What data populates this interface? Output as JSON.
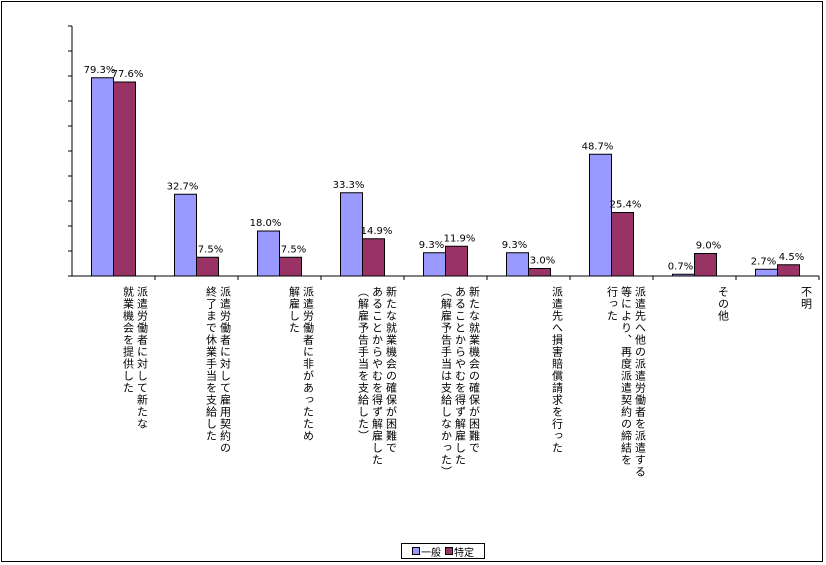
{
  "chart_data": {
    "type": "bar",
    "categories": [
      [
        "派遣労働者に対して新たな",
        "就業機会を提供した"
      ],
      [
        "派遣労働者に対して雇用契約の",
        "終了まで休業手当を支給した"
      ],
      [
        "派遣労働者に非があったため",
        "解雇した"
      ],
      [
        "新たな就業機会の確保が困難で",
        "あることからやむを得ず解雇した",
        "（解雇予告手当を支給した）"
      ],
      [
        "新たな就業機会の確保が困難で",
        "あることからやむを得ず解雇した",
        "（解雇予告手当は支給しなかった）"
      ],
      [
        "派遣先へ損害賠償請求を行った"
      ],
      [
        "派遣先へ他の派遣労働者を派遣する",
        "等により、再度派遣契約の締結を",
        "行った"
      ],
      [
        "その他"
      ],
      [
        "不明"
      ]
    ],
    "series": [
      {
        "name": "一般",
        "color": "#9999ff",
        "values": [
          79.3,
          32.7,
          18.0,
          33.3,
          9.3,
          9.3,
          48.7,
          0.7,
          2.7
        ],
        "labels": [
          "79.3%",
          "32.7%",
          "18.0%",
          "33.3%",
          "9.3%",
          "9.3%",
          "48.7%",
          "0.7%",
          "2.7%"
        ]
      },
      {
        "name": "特定",
        "color": "#993366",
        "values": [
          77.6,
          7.5,
          7.5,
          14.9,
          11.9,
          3.0,
          25.4,
          9.0,
          4.5
        ],
        "labels": [
          "77.6%",
          "7.5%",
          "7.5%",
          "14.9%",
          "11.9%",
          "3.0%",
          "25.4%",
          "9.0%",
          "4.5%"
        ]
      }
    ],
    "ylim": [
      0,
      100
    ],
    "ytick_step": 10,
    "grid": false,
    "legend_position": "bottom-center"
  }
}
